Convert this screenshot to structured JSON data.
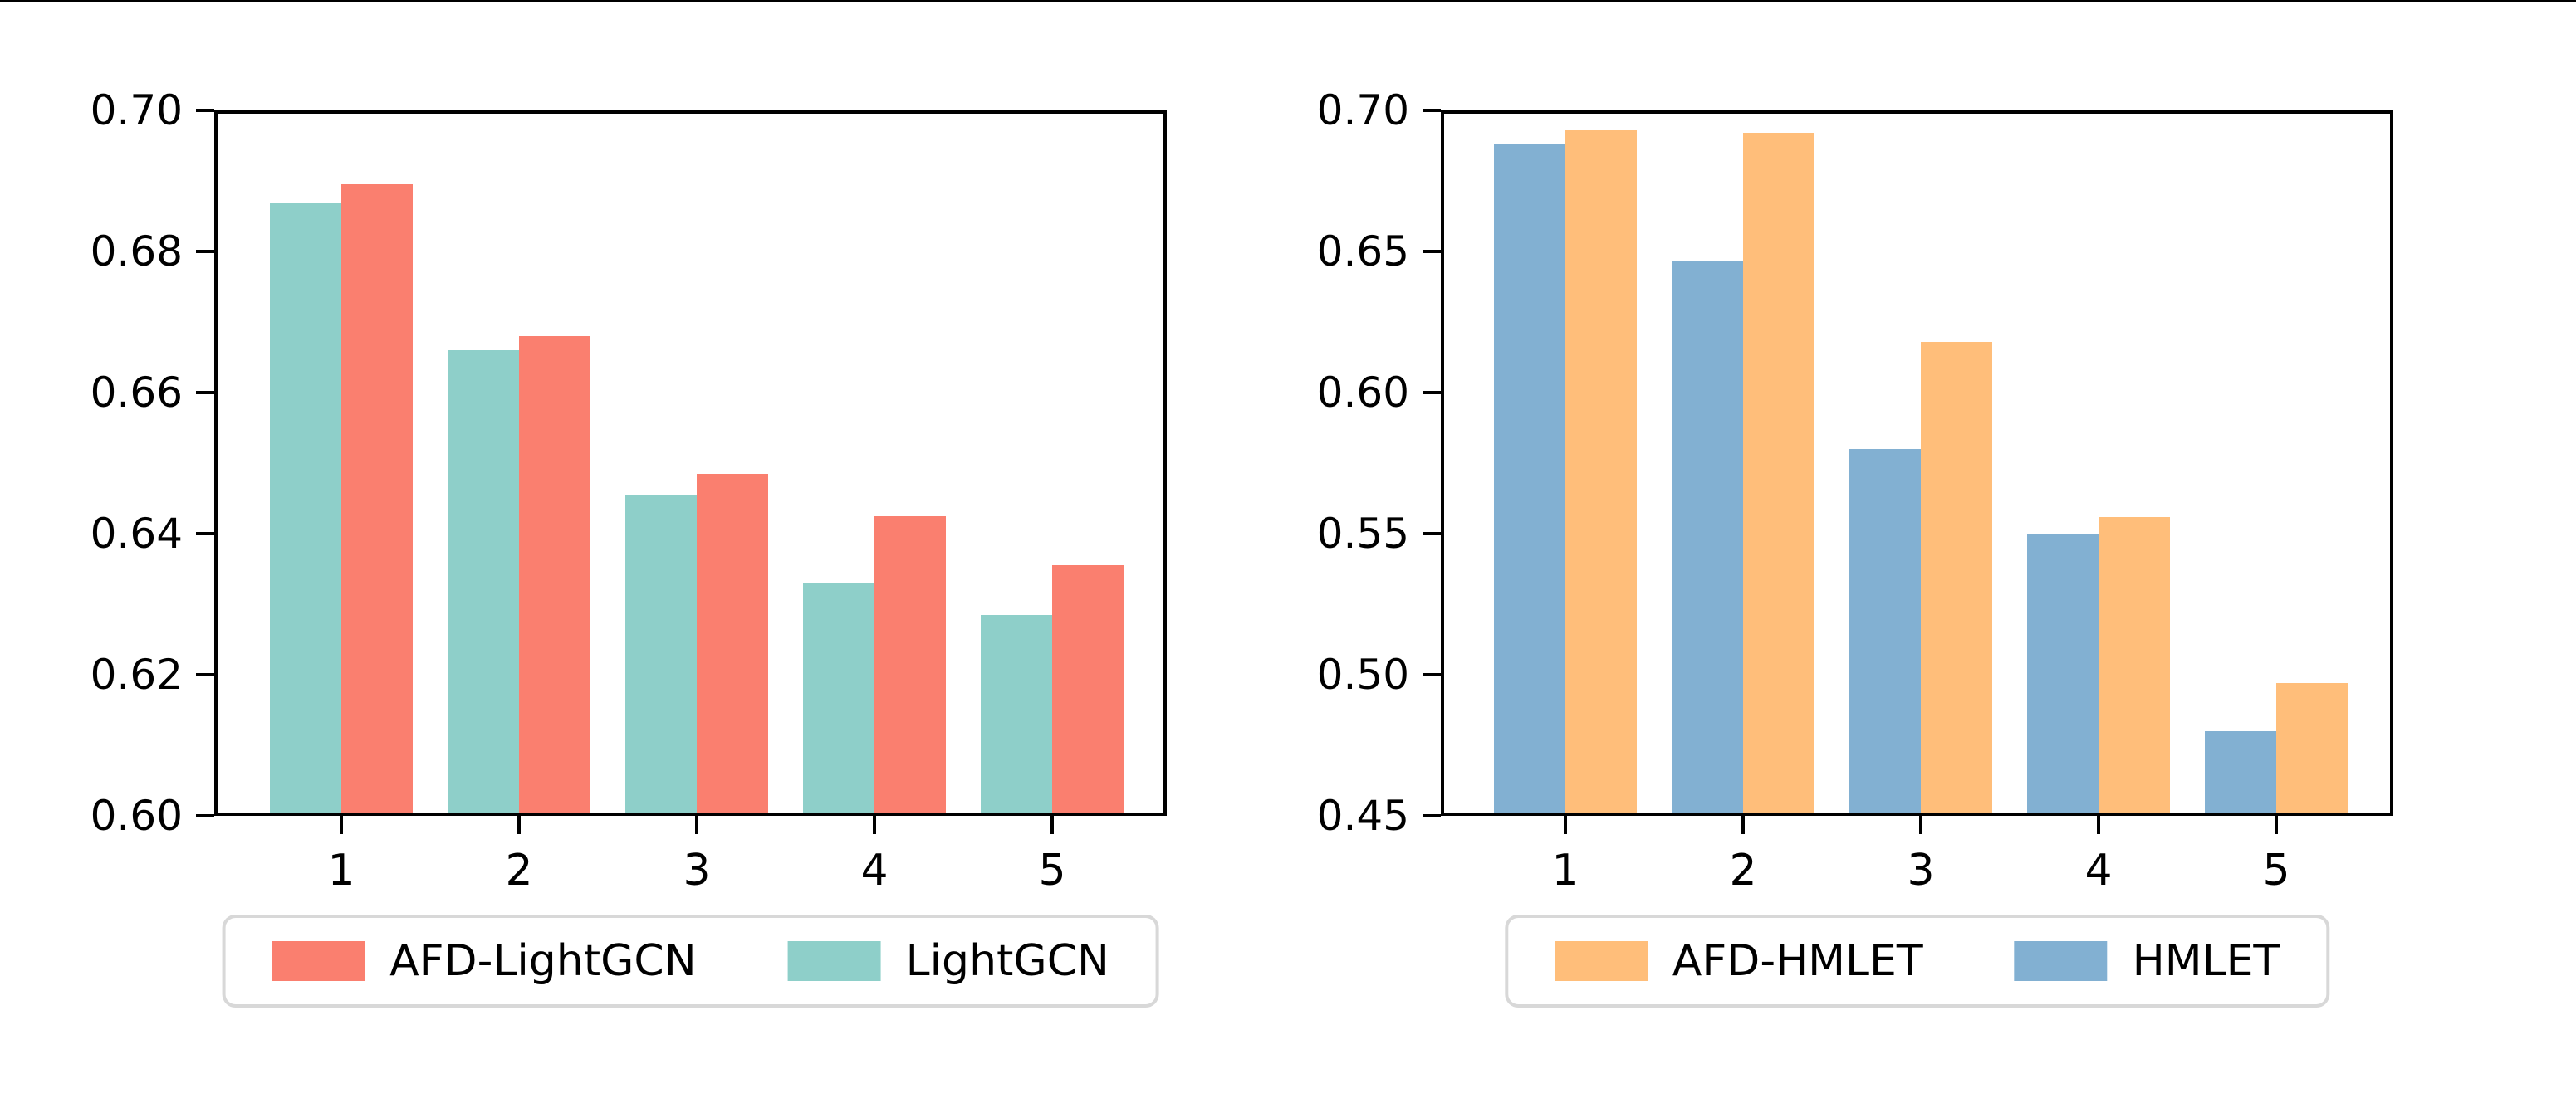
{
  "figure": {
    "background": "#ffffff",
    "top_border_color": "#000000"
  },
  "chart_data": [
    {
      "type": "bar",
      "title": "",
      "xlabel": "",
      "ylabel": "",
      "categories": [
        "1",
        "2",
        "3",
        "4",
        "5"
      ],
      "series": [
        {
          "name": "AFD-LightGCN",
          "color": "#FA7F6F",
          "side": "right",
          "values": [
            0.6895,
            0.668,
            0.6485,
            0.6425,
            0.6355
          ]
        },
        {
          "name": "LightGCN",
          "color": "#8ECFC9",
          "side": "left",
          "values": [
            0.687,
            0.666,
            0.6455,
            0.633,
            0.6285
          ]
        }
      ],
      "ylim": [
        0.6,
        0.7
      ],
      "yticks": [
        {
          "label": "0.70",
          "value": 0.7
        },
        {
          "label": "0.68",
          "value": 0.68
        },
        {
          "label": "0.66",
          "value": 0.66
        },
        {
          "label": "0.64",
          "value": 0.64
        },
        {
          "label": "0.62",
          "value": 0.62
        },
        {
          "label": "0.60",
          "value": 0.6
        }
      ],
      "grid": false,
      "legend_position": "below"
    },
    {
      "type": "bar",
      "title": "",
      "xlabel": "",
      "ylabel": "",
      "categories": [
        "1",
        "2",
        "3",
        "4",
        "5"
      ],
      "series": [
        {
          "name": "AFD-HMLET",
          "color": "#FFBE7A",
          "side": "right",
          "values": [
            0.693,
            0.692,
            0.618,
            0.556,
            0.497
          ]
        },
        {
          "name": "HMLET",
          "color": "#82B0D2",
          "side": "left",
          "values": [
            0.688,
            0.6465,
            0.58,
            0.55,
            0.48
          ]
        }
      ],
      "ylim": [
        0.45,
        0.7
      ],
      "yticks": [
        {
          "label": "0.70",
          "value": 0.7
        },
        {
          "label": "0.65",
          "value": 0.65
        },
        {
          "label": "0.60",
          "value": 0.6
        },
        {
          "label": "0.55",
          "value": 0.55
        },
        {
          "label": "0.50",
          "value": 0.5
        },
        {
          "label": "0.45",
          "value": 0.45
        }
      ],
      "grid": false,
      "legend_position": "below"
    }
  ]
}
